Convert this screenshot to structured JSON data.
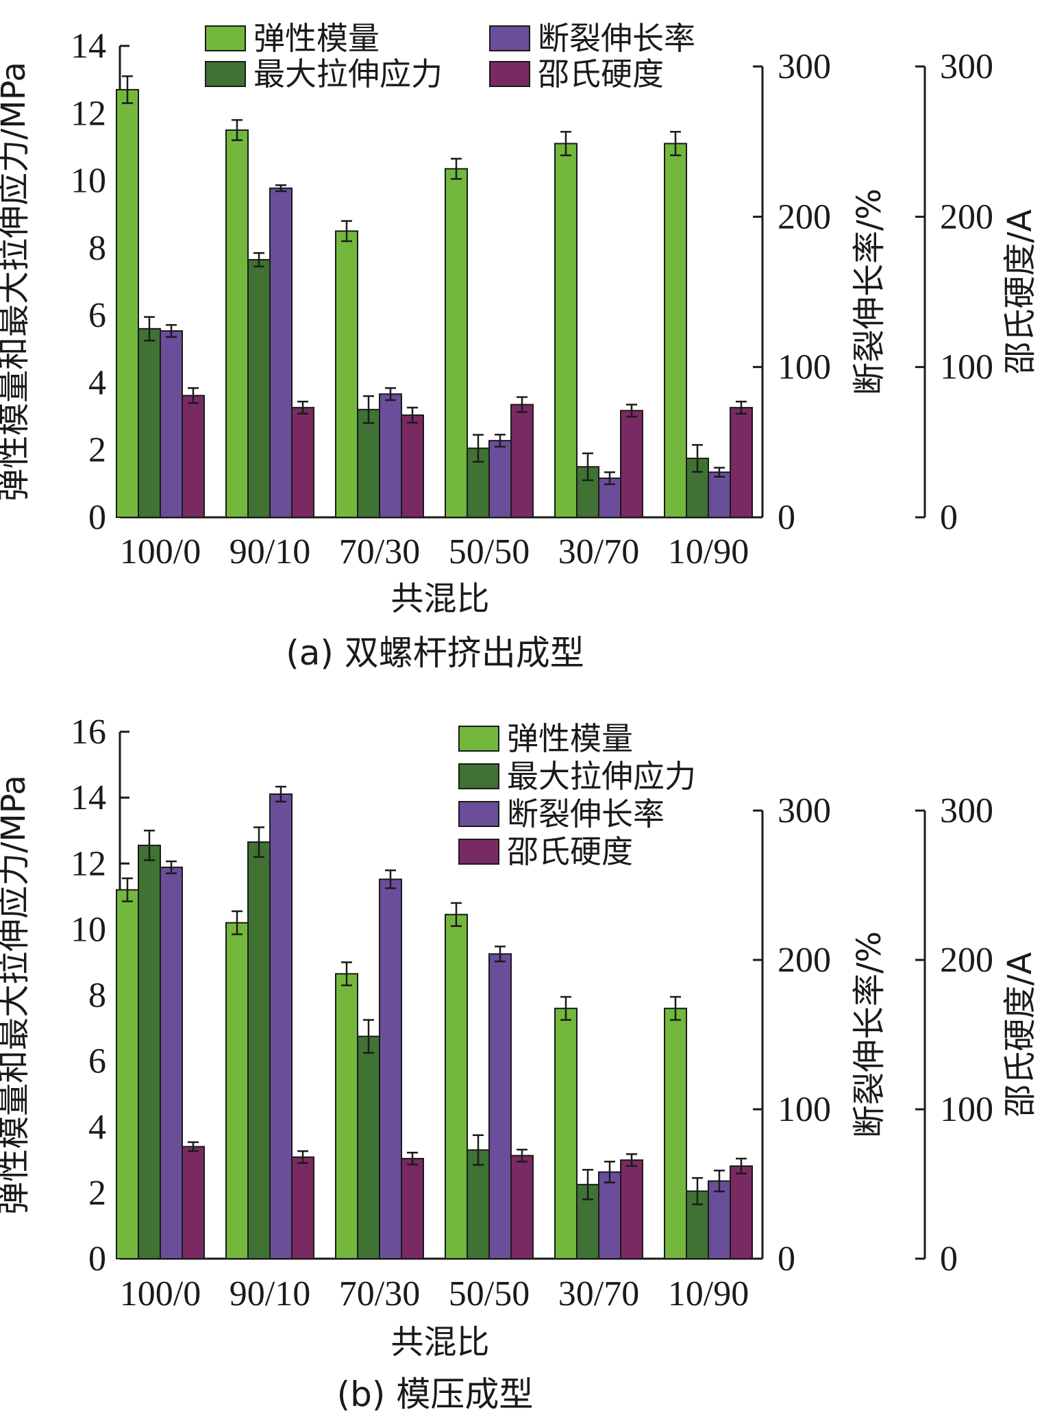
{
  "colors": {
    "modulus": "#73b83c",
    "max_stress": "#3f7233",
    "elongation": "#6b4e9a",
    "hardness": "#7a2a62",
    "axis": "#1a1a1a"
  },
  "chart_data": [
    {
      "type": "bar",
      "caption": "(a) 双螺杆挤出成型",
      "categories": [
        "100/0",
        "90/10",
        "70/30",
        "50/50",
        "30/70",
        "10/90"
      ],
      "xlabel": "共混比",
      "ylabel": "弹性模量和最大拉伸应力/MPa",
      "y2label": "断裂伸长率/%",
      "y3label": "邵氏硬度/A",
      "ylim": [
        0,
        14
      ],
      "yticks": [
        0,
        2,
        4,
        6,
        8,
        10,
        12,
        14
      ],
      "y2lim": [
        0,
        300
      ],
      "y2ticks": [
        0,
        100,
        200,
        300
      ],
      "y3lim": [
        0,
        300
      ],
      "y3ticks": [
        0,
        100,
        200,
        300
      ],
      "legend_position": "top",
      "legend_layout": "two-column",
      "series": [
        {
          "name": "弹性模量",
          "axis": "left",
          "color_key": "modulus",
          "values": [
            12.7,
            11.5,
            8.5,
            10.35,
            11.1,
            11.1
          ],
          "errors": [
            0.4,
            0.3,
            0.3,
            0.3,
            0.35,
            0.35
          ]
        },
        {
          "name": "最大拉伸应力",
          "axis": "left",
          "color_key": "max_stress",
          "values": [
            5.6,
            7.65,
            3.2,
            2.05,
            1.5,
            1.75
          ],
          "errors": [
            0.35,
            0.2,
            0.4,
            0.4,
            0.4,
            0.4
          ]
        },
        {
          "name": "断裂伸长率",
          "axis": "right",
          "color_key": "elongation",
          "values": [
            124,
            219,
            82,
            51,
            26,
            30
          ],
          "errors": [
            4,
            2,
            4,
            4,
            4,
            3
          ]
        },
        {
          "name": "邵氏硬度",
          "axis": "right2",
          "color_key": "hardness",
          "values": [
            81,
            73,
            68,
            75,
            71,
            73
          ],
          "errors": [
            5,
            4,
            5,
            5,
            4,
            4
          ]
        }
      ]
    },
    {
      "type": "bar",
      "caption": "(b) 模压成型",
      "categories": [
        "100/0",
        "90/10",
        "70/30",
        "50/50",
        "30/70",
        "10/90"
      ],
      "xlabel": "共混比",
      "ylabel": "弹性模量和最大拉伸应力/MPa",
      "y2label": "断裂伸长率/%",
      "y3label": "邵氏硬度/A",
      "ylim": [
        0,
        16
      ],
      "yticks": [
        0,
        2,
        4,
        6,
        8,
        10,
        12,
        14,
        16
      ],
      "y2lim": [
        0,
        300
      ],
      "y2ticks": [
        0,
        100,
        200,
        300
      ],
      "y3lim": [
        0,
        300
      ],
      "y3ticks": [
        0,
        100,
        200,
        300
      ],
      "legend_position": "top-right",
      "legend_layout": "single-column",
      "series": [
        {
          "name": "弹性模量",
          "axis": "left",
          "color_key": "modulus",
          "values": [
            11.2,
            10.2,
            8.65,
            10.45,
            7.6,
            7.6
          ],
          "errors": [
            0.35,
            0.35,
            0.35,
            0.35,
            0.35,
            0.35
          ]
        },
        {
          "name": "最大拉伸应力",
          "axis": "left",
          "color_key": "max_stress",
          "values": [
            12.55,
            12.65,
            6.75,
            3.3,
            2.25,
            2.05
          ],
          "errors": [
            0.45,
            0.45,
            0.5,
            0.45,
            0.45,
            0.4
          ]
        },
        {
          "name": "断裂伸长率",
          "axis": "right",
          "color_key": "elongation",
          "values": [
            262,
            311,
            254,
            204,
            58,
            52
          ],
          "errors": [
            4,
            5,
            6,
            5,
            7,
            7
          ]
        },
        {
          "name": "邵氏硬度",
          "axis": "right2",
          "color_key": "hardness",
          "values": [
            75,
            68,
            67,
            69,
            66,
            62
          ],
          "errors": [
            3,
            4,
            4,
            4,
            4,
            5
          ]
        }
      ]
    }
  ]
}
